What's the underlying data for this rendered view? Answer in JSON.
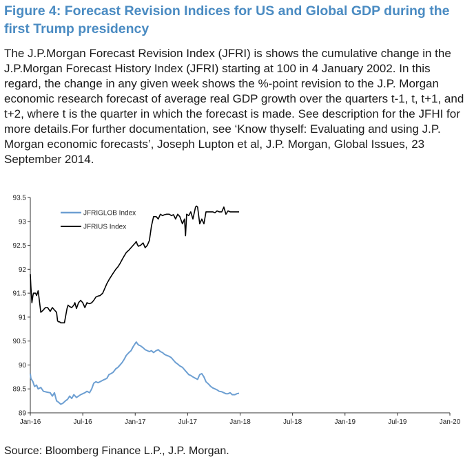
{
  "title": "Figure 4: Forecast Revision Indices for US and Global GDP during the first Trump presidency",
  "description": "The J.P.Morgan Forecast Revision Index (JFRI) is shows the cumulative change in the J.P.Morgan Forecast History Index (JFRI) starting at 100 in 4 January 2002. In this regard, the change in any given week shows the %-point revision to the J.P. Morgan economic research forecast of average real GDP growth over the quarters t-1, t, t+1, and t+2, where t is the quarter in which the forecast is made. See description for the JFHI for more details.For further documentation, see ‘Know thyself: Evaluating and using J.P. Morgan economic forecasts’, Joseph Lupton et al, J.P. Morgan, Global Issues, 23 September 2014.",
  "source": "Source: Bloomberg Finance L.P., J.P. Morgan.",
  "chart_data": {
    "type": "line",
    "title": "",
    "xlabel": "",
    "ylabel": "",
    "ylim": [
      89,
      93.5
    ],
    "yticks": [
      "93.5",
      "93",
      "92.5",
      "92",
      "91.5",
      "91",
      "90.5",
      "90",
      "89.5",
      "89"
    ],
    "xticks": [
      "Jan-16",
      "Jul-16",
      "Jan-17",
      "Jul-17",
      "Jan-18",
      "Jul-18",
      "Jan-19",
      "Jul-19",
      "Jan-20"
    ],
    "grid": false,
    "legend_position": "top-left",
    "series": [
      {
        "name": "JFRIGLOB Index",
        "color": "#6d9fd2",
        "x": [
          0,
          0.01,
          0.05,
          0.08,
          0.12,
          0.15,
          0.2,
          0.25,
          0.33,
          0.38,
          0.42,
          0.46,
          0.5,
          0.54,
          0.58,
          0.62,
          0.67,
          0.71,
          0.75,
          0.79,
          0.83,
          0.88,
          0.92,
          0.96,
          1.0,
          1.04,
          1.08,
          1.13,
          1.17,
          1.21,
          1.25,
          1.29,
          1.33,
          1.38,
          1.42,
          1.46,
          1.5,
          1.54,
          1.58,
          1.63,
          1.67,
          1.71,
          1.75,
          1.79,
          1.83,
          1.88,
          1.92,
          1.96,
          2.0,
          2.02,
          2.06,
          2.1,
          2.15,
          2.19,
          2.23,
          2.27,
          2.31,
          2.35,
          2.4,
          2.44,
          2.48,
          2.52,
          2.56,
          2.6,
          2.65,
          2.69,
          2.73,
          2.77,
          2.81,
          2.85,
          2.9,
          2.94,
          2.98,
          3.02,
          3.06,
          3.1,
          3.15,
          3.19,
          3.23,
          3.27,
          3.31,
          3.35,
          3.4,
          3.44,
          3.48,
          3.52,
          3.56,
          3.6,
          3.65,
          3.69,
          3.73,
          3.77,
          3.81,
          3.85,
          3.9,
          3.94,
          3.98
        ],
        "values": [
          89.82,
          89.72,
          89.65,
          89.55,
          89.58,
          89.5,
          89.53,
          89.45,
          89.43,
          89.42,
          89.35,
          89.42,
          89.25,
          89.22,
          89.18,
          89.2,
          89.25,
          89.28,
          89.35,
          89.3,
          89.38,
          89.32,
          89.35,
          89.38,
          89.4,
          89.42,
          89.45,
          89.42,
          89.5,
          89.62,
          89.65,
          89.63,
          89.65,
          89.68,
          89.7,
          89.72,
          89.8,
          89.82,
          89.85,
          89.92,
          89.95,
          90.0,
          90.05,
          90.12,
          90.2,
          90.26,
          90.3,
          90.38,
          90.45,
          90.48,
          90.42,
          90.4,
          90.36,
          90.32,
          90.3,
          90.28,
          90.3,
          90.26,
          90.3,
          90.32,
          90.28,
          90.26,
          90.22,
          90.2,
          90.18,
          90.15,
          90.1,
          90.05,
          90.02,
          89.98,
          89.95,
          89.9,
          89.85,
          89.8,
          89.78,
          89.75,
          89.72,
          89.7,
          89.8,
          89.82,
          89.75,
          89.65,
          89.6,
          89.55,
          89.52,
          89.5,
          89.48,
          89.45,
          89.44,
          89.42,
          89.4,
          89.4,
          89.42,
          89.38,
          89.38,
          89.4,
          89.41
        ]
      },
      {
        "name": "JFRIUS Index",
        "color": "#000000",
        "x": [
          0,
          0.01,
          0.03,
          0.05,
          0.06,
          0.08,
          0.1,
          0.12,
          0.15,
          0.2,
          0.25,
          0.27,
          0.29,
          0.33,
          0.38,
          0.42,
          0.46,
          0.5,
          0.52,
          0.54,
          0.56,
          0.58,
          0.6,
          0.65,
          0.7,
          0.72,
          0.75,
          0.79,
          0.83,
          0.85,
          0.88,
          0.92,
          0.96,
          1.0,
          1.04,
          1.08,
          1.13,
          1.17,
          1.21,
          1.25,
          1.29,
          1.33,
          1.38,
          1.42,
          1.46,
          1.5,
          1.54,
          1.58,
          1.63,
          1.67,
          1.71,
          1.75,
          1.79,
          1.83,
          1.88,
          1.92,
          1.96,
          2.0,
          2.02,
          2.04,
          2.06,
          2.1,
          2.15,
          2.19,
          2.23,
          2.27,
          2.31,
          2.35,
          2.4,
          2.44,
          2.48,
          2.52,
          2.56,
          2.6,
          2.65,
          2.69,
          2.73,
          2.77,
          2.81,
          2.85,
          2.9,
          2.94,
          2.96,
          2.98,
          3.02,
          3.06,
          3.1,
          3.15,
          3.17,
          3.19,
          3.23,
          3.27,
          3.31,
          3.35,
          3.4,
          3.44,
          3.48,
          3.52,
          3.56,
          3.6,
          3.65,
          3.69,
          3.73,
          3.77,
          3.81,
          3.85,
          3.9,
          3.94,
          3.98
        ],
        "values": [
          91.9,
          91.65,
          91.3,
          91.45,
          91.5,
          91.5,
          91.5,
          91.45,
          91.55,
          91.1,
          91.15,
          91.18,
          91.2,
          91.2,
          91.12,
          91.2,
          91.15,
          91.1,
          90.92,
          90.9,
          90.9,
          90.88,
          90.88,
          90.88,
          91.18,
          91.25,
          91.22,
          91.2,
          91.25,
          91.3,
          91.18,
          91.3,
          91.35,
          91.3,
          91.2,
          91.3,
          91.28,
          91.3,
          91.35,
          91.42,
          91.44,
          91.45,
          91.5,
          91.6,
          91.7,
          91.78,
          91.85,
          91.92,
          92.0,
          92.05,
          92.12,
          92.2,
          92.28,
          92.35,
          92.4,
          92.45,
          92.5,
          92.55,
          92.58,
          92.52,
          92.48,
          92.5,
          92.55,
          92.45,
          92.5,
          92.6,
          92.9,
          93.1,
          93.1,
          93.05,
          93.15,
          93.12,
          93.14,
          93.15,
          93.15,
          93.12,
          93.14,
          93.05,
          93.15,
          93.1,
          92.95,
          93.05,
          92.7,
          93.15,
          93.12,
          93.2,
          93.05,
          93.3,
          93.32,
          93.3,
          92.95,
          93.05,
          92.95,
          93.2,
          93.2,
          93.2,
          93.2,
          93.18,
          93.22,
          93.2,
          93.2,
          93.3,
          93.15,
          93.22,
          93.2,
          93.2,
          93.2,
          93.2,
          93.2
        ]
      }
    ]
  }
}
